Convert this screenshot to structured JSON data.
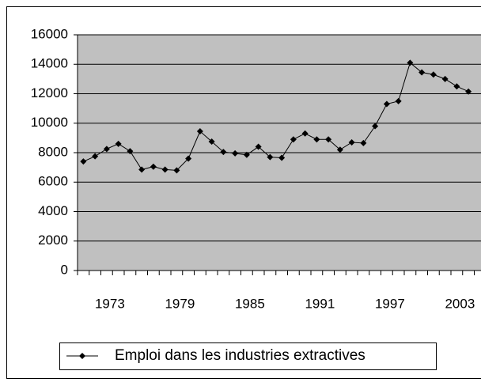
{
  "chart_data": {
    "type": "line",
    "categories": [
      null,
      null,
      1973,
      null,
      null,
      null,
      null,
      null,
      1979,
      null,
      null,
      null,
      null,
      null,
      1985,
      null,
      null,
      null,
      null,
      null,
      1991,
      null,
      null,
      null,
      null,
      null,
      1997,
      null,
      null,
      null,
      null,
      null,
      2003,
      null
    ],
    "series": [
      {
        "name": "Emploi dans les industries extractives",
        "color": "#000000",
        "values": [
          7400,
          7750,
          8250,
          8600,
          8100,
          6850,
          7050,
          6850,
          6800,
          7600,
          9450,
          8750,
          8050,
          7950,
          7850,
          8400,
          7700,
          7650,
          8900,
          9300,
          8900,
          8900,
          8200,
          8700,
          8650,
          9800,
          11300,
          11500,
          14100,
          13450,
          13300,
          13000,
          12500,
          12150
        ]
      }
    ],
    "ylim": [
      0,
      16000
    ],
    "yticks": [
      0,
      2000,
      4000,
      6000,
      8000,
      10000,
      12000,
      14000,
      16000
    ],
    "grid": true,
    "legend": "bottom"
  }
}
